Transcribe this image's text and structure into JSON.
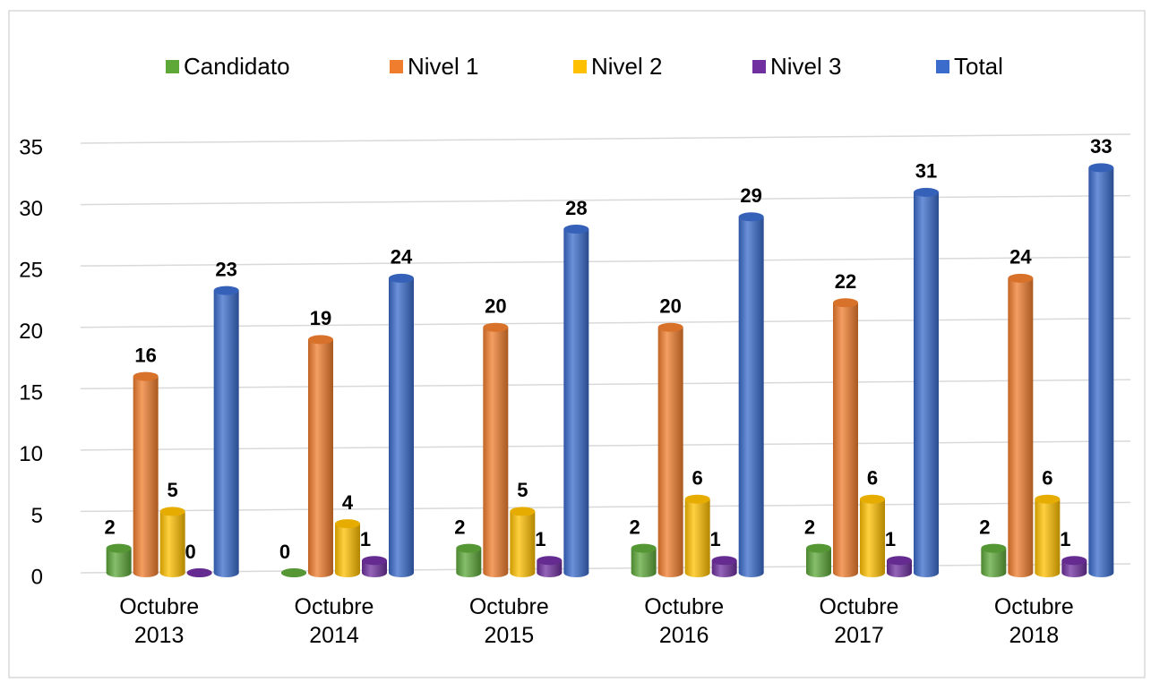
{
  "chart_data": {
    "type": "bar",
    "categories": [
      "Octubre 2013",
      "Octubre 2014",
      "Octubre 2015",
      "Octubre 2016",
      "Octubre 2017",
      "Octubre 2018"
    ],
    "series": [
      {
        "name": "Candidato",
        "color": "#5ea83a",
        "values": [
          2,
          0,
          2,
          2,
          2,
          2
        ]
      },
      {
        "name": "Nivel 1",
        "color": "#f07d2e",
        "values": [
          16,
          19,
          20,
          20,
          22,
          24
        ]
      },
      {
        "name": "Nivel 2",
        "color": "#ffc000",
        "values": [
          5,
          4,
          5,
          6,
          6,
          6
        ]
      },
      {
        "name": "Nivel 3",
        "color": "#7030a0",
        "values": [
          0,
          1,
          1,
          1,
          1,
          1
        ]
      },
      {
        "name": "Total",
        "color": "#3b6ccc",
        "values": [
          23,
          24,
          28,
          29,
          31,
          33
        ]
      }
    ],
    "ylim": [
      0,
      35
    ],
    "yticks": [
      0,
      5,
      10,
      15,
      20,
      25,
      30,
      35
    ],
    "grid": true,
    "legend": "top"
  }
}
